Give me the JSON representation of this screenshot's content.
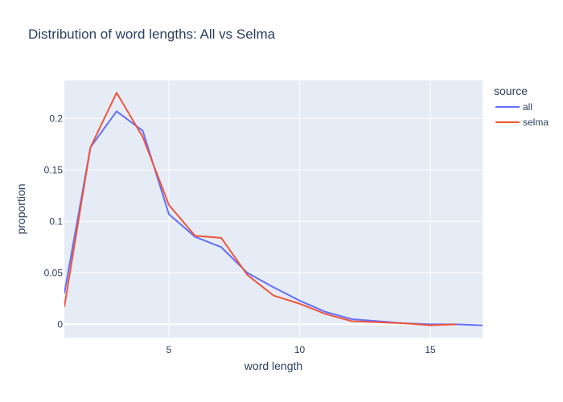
{
  "chart_data": {
    "type": "line",
    "title": "Distribution of word lengths: All vs Selma",
    "xlabel": "word length",
    "ylabel": "proportion",
    "xlim": [
      1,
      17
    ],
    "ylim": [
      -0.013,
      0.237
    ],
    "x_ticks": [
      5,
      10,
      15
    ],
    "y_ticks": [
      0,
      0.05,
      0.1,
      0.15,
      0.2
    ],
    "y_tick_labels": [
      "0",
      "0.05",
      "0.1",
      "0.15",
      "0.2"
    ],
    "grid": true,
    "legend": {
      "title": "source",
      "placement": "right"
    },
    "series": [
      {
        "name": "all",
        "color": "#636efa",
        "x": [
          1,
          2,
          3,
          4,
          5,
          6,
          7,
          8,
          9,
          10,
          11,
          12,
          13,
          14,
          15,
          16,
          17
        ],
        "y": [
          0.03,
          0.172,
          0.207,
          0.188,
          0.107,
          0.085,
          0.075,
          0.05,
          0.036,
          0.023,
          0.012,
          0.005,
          0.003,
          0.001,
          0.0,
          0.0,
          -0.001
        ]
      },
      {
        "name": "selma",
        "color": "#ef553b",
        "x": [
          1,
          2,
          3,
          4,
          5,
          6,
          7,
          8,
          9,
          10,
          11,
          12,
          13,
          14,
          15,
          16
        ],
        "y": [
          0.017,
          0.172,
          0.225,
          0.182,
          0.116,
          0.086,
          0.084,
          0.048,
          0.028,
          0.02,
          0.01,
          0.003,
          0.002,
          0.001,
          -0.001,
          0.0
        ]
      }
    ]
  }
}
